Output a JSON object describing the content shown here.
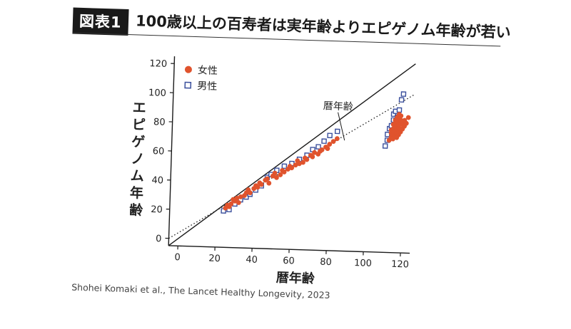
{
  "header": {
    "figure_label": "図表1",
    "title": "100歳以上の百寿者は実年齢よりエピゲノム年齢が若い"
  },
  "credit": "Shohei Komaki et al., The Lancet Healthy Longevity, 2023",
  "chart_data": {
    "type": "scatter",
    "xlabel": "暦年齢",
    "ylabel": "エピゲノム年齢",
    "xlim": [
      -5,
      125
    ],
    "ylim": [
      -5,
      125
    ],
    "xticks": [
      0,
      20,
      40,
      60,
      80,
      100,
      120
    ],
    "yticks": [
      0,
      20,
      40,
      60,
      80,
      100,
      120
    ],
    "grid": false,
    "legend_position": "top-left",
    "colors": {
      "female": "#e0532d",
      "male": "#3a4f9c",
      "lines": "#1a1a1a"
    },
    "identity_line": {
      "from": [
        -5,
        -5
      ],
      "to": [
        125,
        125
      ],
      "style": "solid"
    },
    "fit_line": {
      "from": [
        -5,
        0
      ],
      "to": [
        125,
        104
      ],
      "style": "dotted",
      "label": "暦年齢"
    },
    "series": [
      {
        "name": "女性",
        "marker": "filled-circle",
        "points": [
          [
            25,
            22
          ],
          [
            26,
            24
          ],
          [
            27,
            23
          ],
          [
            28,
            25
          ],
          [
            29,
            28
          ],
          [
            30,
            27
          ],
          [
            31,
            29
          ],
          [
            32,
            26
          ],
          [
            33,
            30
          ],
          [
            35,
            31
          ],
          [
            36,
            33
          ],
          [
            37,
            35
          ],
          [
            38,
            33
          ],
          [
            40,
            36
          ],
          [
            41,
            38
          ],
          [
            42,
            37
          ],
          [
            43,
            40
          ],
          [
            44,
            39
          ],
          [
            46,
            42
          ],
          [
            47,
            43
          ],
          [
            48,
            40
          ],
          [
            50,
            45
          ],
          [
            51,
            47
          ],
          [
            52,
            44
          ],
          [
            54,
            46
          ],
          [
            55,
            49
          ],
          [
            56,
            48
          ],
          [
            58,
            50
          ],
          [
            59,
            52
          ],
          [
            60,
            51
          ],
          [
            62,
            53
          ],
          [
            63,
            56
          ],
          [
            64,
            54
          ],
          [
            66,
            55
          ],
          [
            67,
            58
          ],
          [
            68,
            57
          ],
          [
            70,
            60
          ],
          [
            71,
            59
          ],
          [
            72,
            62
          ],
          [
            74,
            61
          ],
          [
            75,
            63
          ],
          [
            76,
            64
          ],
          [
            78,
            66
          ],
          [
            79,
            65
          ],
          [
            80,
            68
          ],
          [
            82,
            70
          ],
          [
            84,
            72
          ],
          [
            112,
            72
          ],
          [
            113,
            74
          ],
          [
            113,
            77
          ],
          [
            113,
            79
          ],
          [
            114,
            73
          ],
          [
            114,
            76
          ],
          [
            114,
            80
          ],
          [
            114,
            83
          ],
          [
            115,
            75
          ],
          [
            115,
            78
          ],
          [
            115,
            81
          ],
          [
            115,
            84
          ],
          [
            115,
            86
          ],
          [
            116,
            74
          ],
          [
            116,
            77
          ],
          [
            116,
            80
          ],
          [
            116,
            82
          ],
          [
            116,
            85
          ],
          [
            116,
            88
          ],
          [
            117,
            76
          ],
          [
            117,
            79
          ],
          [
            117,
            81
          ],
          [
            117,
            83
          ],
          [
            117,
            87
          ],
          [
            117,
            90
          ],
          [
            118,
            78
          ],
          [
            118,
            80
          ],
          [
            118,
            84
          ],
          [
            118,
            86
          ],
          [
            118,
            89
          ],
          [
            119,
            80
          ],
          [
            119,
            83
          ],
          [
            119,
            85
          ],
          [
            120,
            82
          ],
          [
            120,
            86
          ],
          [
            121,
            84
          ],
          [
            122,
            88
          ]
        ]
      },
      {
        "name": "男性",
        "marker": "open-square",
        "points": [
          [
            24,
            20
          ],
          [
            27,
            21
          ],
          [
            30,
            25
          ],
          [
            33,
            28
          ],
          [
            36,
            30
          ],
          [
            38,
            32
          ],
          [
            41,
            35
          ],
          [
            44,
            38
          ],
          [
            47,
            44
          ],
          [
            49,
            46
          ],
          [
            52,
            49
          ],
          [
            56,
            52
          ],
          [
            60,
            54
          ],
          [
            64,
            57
          ],
          [
            68,
            60
          ],
          [
            71,
            64
          ],
          [
            74,
            66
          ],
          [
            77,
            70
          ],
          [
            80,
            74
          ],
          [
            84,
            77
          ],
          [
            110,
            68
          ],
          [
            111,
            72
          ],
          [
            111,
            76
          ],
          [
            112,
            80
          ],
          [
            113,
            82
          ],
          [
            114,
            86
          ],
          [
            114,
            90
          ],
          [
            115,
            92
          ],
          [
            116,
            88
          ],
          [
            117,
            93
          ],
          [
            118,
            100
          ],
          [
            119,
            104
          ]
        ]
      }
    ]
  }
}
